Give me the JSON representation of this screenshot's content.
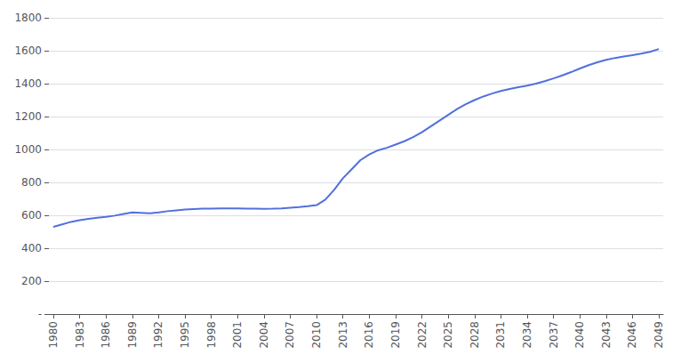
{
  "chart_data": {
    "type": "line",
    "x": [
      1980,
      1981,
      1982,
      1983,
      1984,
      1985,
      1986,
      1987,
      1988,
      1989,
      1990,
      1991,
      1992,
      1993,
      1994,
      1995,
      1996,
      1997,
      1998,
      1999,
      2000,
      2001,
      2002,
      2003,
      2004,
      2005,
      2006,
      2007,
      2008,
      2009,
      2010,
      2011,
      2012,
      2013,
      2014,
      2015,
      2016,
      2017,
      2018,
      2019,
      2020,
      2021,
      2022,
      2023,
      2024,
      2025,
      2026,
      2027,
      2028,
      2029,
      2030,
      2031,
      2032,
      2033,
      2034,
      2035,
      2036,
      2037,
      2038,
      2039,
      2040,
      2041,
      2042,
      2043,
      2044,
      2045,
      2046,
      2047,
      2048,
      2049
    ],
    "values": [
      530,
      545,
      560,
      570,
      578,
      585,
      590,
      598,
      608,
      618,
      615,
      612,
      618,
      625,
      630,
      635,
      638,
      640,
      641,
      642,
      642,
      642,
      641,
      640,
      639,
      640,
      642,
      646,
      650,
      655,
      662,
      695,
      755,
      825,
      880,
      935,
      970,
      995,
      1010,
      1030,
      1050,
      1075,
      1105,
      1140,
      1175,
      1210,
      1245,
      1275,
      1300,
      1322,
      1340,
      1355,
      1368,
      1378,
      1388,
      1400,
      1415,
      1432,
      1450,
      1470,
      1492,
      1512,
      1530,
      1545,
      1556,
      1565,
      1573,
      1582,
      1593,
      1610
    ],
    "xlim": [
      1979.5,
      2049.5
    ],
    "xticks": [
      1980,
      1983,
      1986,
      1989,
      1992,
      1995,
      1998,
      2001,
      2004,
      2007,
      2010,
      2013,
      2016,
      2019,
      2022,
      2025,
      2028,
      2031,
      2034,
      2037,
      2040,
      2043,
      2046,
      2049
    ],
    "ylim": [
      0,
      1800
    ],
    "yticks": [
      {
        "value": 0,
        "label": "-"
      },
      200,
      400,
      600,
      800,
      1000,
      1200,
      1400,
      1600,
      1800
    ],
    "grid": "y"
  }
}
